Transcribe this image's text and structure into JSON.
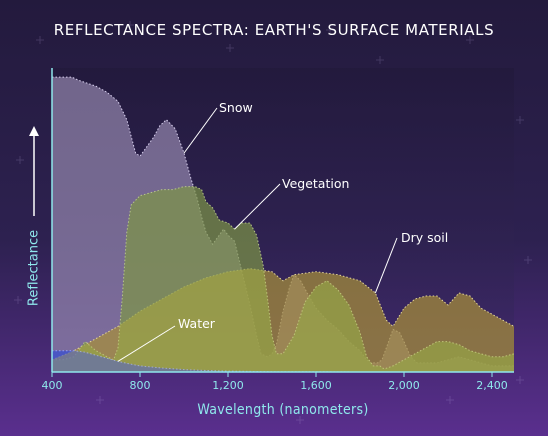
{
  "chart_data": {
    "type": "area",
    "title": "REFLECTANCE SPECTRA: EARTH'S SURFACE MATERIALS",
    "xlabel": "Wavelength (nanometers)",
    "ylabel": "Reflectance",
    "xlim": [
      400,
      2500
    ],
    "ylim": [
      0,
      1
    ],
    "xticks": [
      400,
      800,
      1200,
      1600,
      2000,
      2400
    ],
    "xtick_labels": [
      "400",
      "800",
      "1,200",
      "1,600",
      "2,000",
      "2,400"
    ],
    "yticks": [],
    "grid": false,
    "legend": "none",
    "series": [
      {
        "name": "Snow",
        "color": "#a69ac0",
        "x": [
          400,
          430,
          460,
          490,
          520,
          560,
          600,
          650,
          700,
          740,
          780,
          800,
          830,
          860,
          890,
          920,
          960,
          1000,
          1030,
          1060,
          1080,
          1100,
          1130,
          1150,
          1180,
          1200,
          1230,
          1260,
          1300,
          1330,
          1350,
          1380,
          1400,
          1420,
          1450,
          1480,
          1500,
          1530,
          1560,
          1600,
          1650,
          1700,
          1750,
          1800,
          1830,
          1850,
          1880,
          1900,
          1920,
          1950,
          1980,
          2000,
          2030,
          2060,
          2100,
          2150,
          2200,
          2250,
          2300,
          2350,
          2400,
          2450,
          2500
        ],
        "values": [
          0.97,
          0.97,
          0.97,
          0.97,
          0.96,
          0.95,
          0.94,
          0.92,
          0.89,
          0.83,
          0.72,
          0.71,
          0.74,
          0.77,
          0.81,
          0.83,
          0.8,
          0.72,
          0.64,
          0.57,
          0.51,
          0.46,
          0.42,
          0.44,
          0.47,
          0.45,
          0.43,
          0.34,
          0.22,
          0.12,
          0.06,
          0.05,
          0.06,
          0.09,
          0.2,
          0.28,
          0.32,
          0.3,
          0.26,
          0.21,
          0.17,
          0.14,
          0.1,
          0.07,
          0.04,
          0.03,
          0.03,
          0.04,
          0.08,
          0.14,
          0.13,
          0.1,
          0.05,
          0.03,
          0.03,
          0.03,
          0.04,
          0.05,
          0.04,
          0.03,
          0.02,
          0.02,
          0.02
        ]
      },
      {
        "name": "Vegetation",
        "color": "#6e8a4a",
        "x": [
          400,
          450,
          500,
          550,
          600,
          650,
          680,
          700,
          720,
          740,
          760,
          800,
          850,
          900,
          950,
          1000,
          1050,
          1080,
          1100,
          1130,
          1160,
          1200,
          1230,
          1260,
          1300,
          1330,
          1360,
          1380,
          1400,
          1420,
          1450,
          1500,
          1550,
          1600,
          1650,
          1700,
          1750,
          1800,
          1830,
          1860,
          1890,
          1910,
          1950,
          2000,
          2050,
          2100,
          2150,
          2200,
          2250,
          2300,
          2350,
          2400,
          2450,
          2500
        ],
        "values": [
          0.04,
          0.04,
          0.05,
          0.1,
          0.07,
          0.05,
          0.04,
          0.08,
          0.25,
          0.46,
          0.55,
          0.58,
          0.59,
          0.6,
          0.6,
          0.61,
          0.61,
          0.6,
          0.56,
          0.54,
          0.5,
          0.49,
          0.47,
          0.49,
          0.49,
          0.45,
          0.35,
          0.24,
          0.12,
          0.06,
          0.06,
          0.12,
          0.23,
          0.28,
          0.3,
          0.27,
          0.22,
          0.13,
          0.05,
          0.02,
          0.02,
          0.01,
          0.02,
          0.04,
          0.06,
          0.08,
          0.1,
          0.1,
          0.09,
          0.07,
          0.06,
          0.05,
          0.05,
          0.06
        ]
      },
      {
        "name": "Dry soil",
        "color": "#8b6a2e",
        "x": [
          400,
          500,
          600,
          700,
          800,
          900,
          1000,
          1100,
          1200,
          1300,
          1400,
          1450,
          1500,
          1600,
          1700,
          1800,
          1870,
          1920,
          1950,
          2000,
          2050,
          2100,
          2150,
          2200,
          2250,
          2300,
          2350,
          2400,
          2450,
          2500
        ],
        "values": [
          0.04,
          0.07,
          0.11,
          0.15,
          0.2,
          0.24,
          0.28,
          0.31,
          0.33,
          0.34,
          0.33,
          0.3,
          0.32,
          0.33,
          0.32,
          0.3,
          0.26,
          0.17,
          0.15,
          0.21,
          0.24,
          0.25,
          0.25,
          0.22,
          0.26,
          0.25,
          0.21,
          0.19,
          0.17,
          0.15
        ]
      },
      {
        "name": "Water",
        "color": "#3a4fd0",
        "x": [
          400,
          450,
          500,
          550,
          600,
          650,
          700,
          750,
          800,
          900,
          1000,
          1100,
          1200,
          1300,
          1400,
          1600,
          1800,
          2000,
          2200,
          2400,
          2500
        ],
        "values": [
          0.07,
          0.07,
          0.07,
          0.065,
          0.055,
          0.045,
          0.035,
          0.027,
          0.02,
          0.013,
          0.008,
          0.005,
          0.003,
          0.002,
          0.001,
          0.001,
          0.0,
          0.0,
          0.0,
          0.0,
          0.0
        ]
      }
    ]
  }
}
